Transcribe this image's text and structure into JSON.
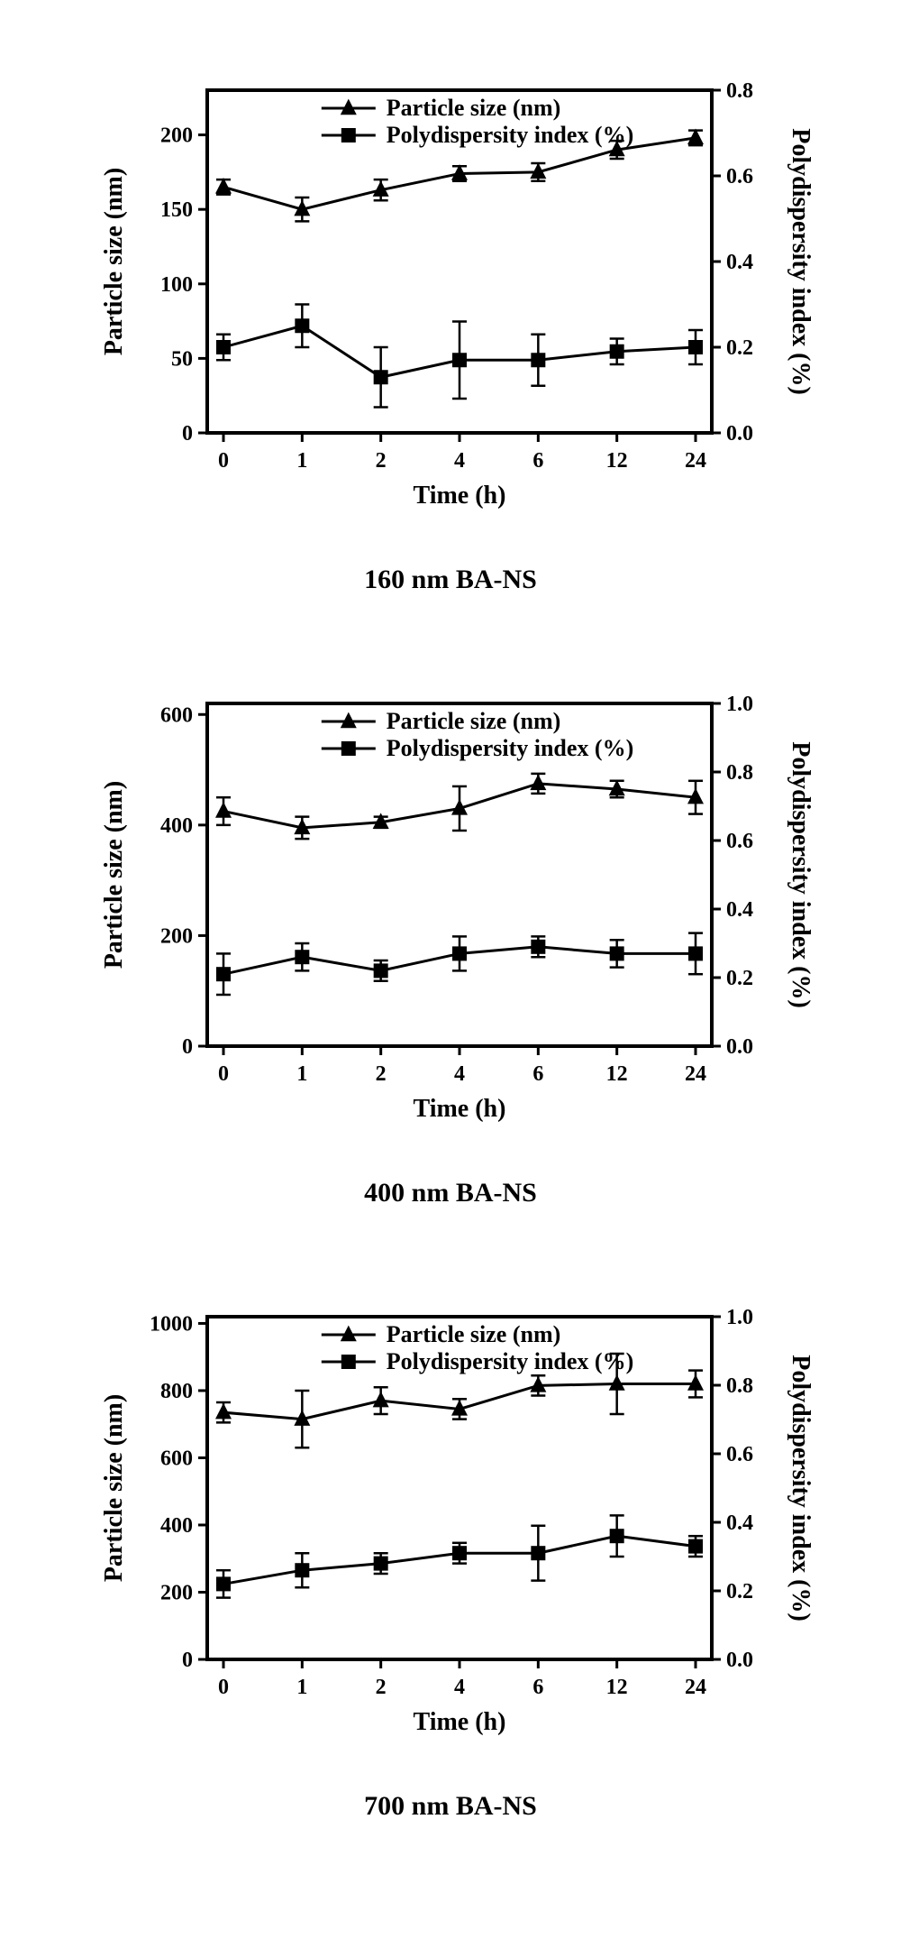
{
  "global": {
    "xlabel": "Time (h)",
    "x_categories": [
      "0",
      "1",
      "2",
      "4",
      "6",
      "12",
      "24"
    ],
    "legend": {
      "series1": "Particle size (nm)",
      "series2": "Polydispersity index (%)"
    },
    "colors": {
      "line": "#000000",
      "axis": "#000000",
      "text": "#000000",
      "background": "#ffffff"
    },
    "font": {
      "axis_label_pt": 28,
      "tick_pt": 24,
      "legend_pt": 26,
      "subtitle_pt": 30,
      "weight": "bold",
      "family": "Times New Roman"
    },
    "marker": {
      "triangle_size": 9,
      "square_size": 8,
      "line_width": 3,
      "error_cap_width": 4,
      "error_line_width": 2.5
    }
  },
  "panels": [
    {
      "subtitle": "160 nm BA-NS",
      "y1": {
        "label": "Particle size (nm)",
        "lim": [
          0,
          230
        ],
        "ticks": [
          0,
          50,
          100,
          150,
          200
        ]
      },
      "y2": {
        "label": "Polydispersity index (%)",
        "lim": [
          0.0,
          0.8
        ],
        "ticks": [
          0.0,
          0.2,
          0.4,
          0.6,
          0.8
        ],
        "tick_labels": [
          "0.0",
          "0.2",
          "0.4",
          "0.6",
          "0.8"
        ]
      },
      "series1": {
        "values": [
          165,
          150,
          163,
          174,
          175,
          190,
          198
        ],
        "err": [
          5,
          8,
          7,
          5,
          6,
          6,
          5
        ]
      },
      "series2": {
        "values": [
          0.2,
          0.25,
          0.13,
          0.17,
          0.17,
          0.19,
          0.2
        ],
        "err": [
          0.03,
          0.05,
          0.07,
          0.09,
          0.06,
          0.03,
          0.04
        ]
      }
    },
    {
      "subtitle": "400 nm BA-NS",
      "y1": {
        "label": "Particle size (nm)",
        "lim": [
          0,
          620
        ],
        "ticks": [
          0,
          200,
          400,
          600
        ]
      },
      "y2": {
        "label": "Polydispersity index (%)",
        "lim": [
          0.0,
          1.0
        ],
        "ticks": [
          0.0,
          0.2,
          0.4,
          0.6,
          0.8,
          1.0
        ],
        "tick_labels": [
          "0.0",
          "0.2",
          "0.4",
          "0.6",
          "0.8",
          "1.0"
        ]
      },
      "series1": {
        "values": [
          425,
          395,
          405,
          430,
          475,
          465,
          450
        ],
        "err": [
          25,
          20,
          10,
          40,
          18,
          15,
          30
        ]
      },
      "series2": {
        "values": [
          0.21,
          0.26,
          0.22,
          0.27,
          0.29,
          0.27,
          0.27
        ],
        "err": [
          0.06,
          0.04,
          0.03,
          0.05,
          0.03,
          0.04,
          0.06
        ]
      }
    },
    {
      "subtitle": "700 nm BA-NS",
      "y1": {
        "label": "Particle size (nm)",
        "lim": [
          0,
          1020
        ],
        "ticks": [
          0,
          200,
          400,
          600,
          800,
          1000
        ]
      },
      "y2": {
        "label": "Polydispersity index (%)",
        "lim": [
          0.0,
          1.0
        ],
        "ticks": [
          0.0,
          0.2,
          0.4,
          0.6,
          0.8,
          1.0
        ],
        "tick_labels": [
          "0.0",
          "0.2",
          "0.4",
          "0.6",
          "0.8",
          "1.0"
        ]
      },
      "series1": {
        "values": [
          735,
          715,
          770,
          745,
          815,
          820,
          820
        ],
        "err": [
          30,
          85,
          40,
          30,
          30,
          90,
          40
        ]
      },
      "series2": {
        "values": [
          0.22,
          0.26,
          0.28,
          0.31,
          0.31,
          0.36,
          0.33
        ],
        "err": [
          0.04,
          0.05,
          0.03,
          0.03,
          0.08,
          0.06,
          0.03
        ]
      }
    }
  ]
}
